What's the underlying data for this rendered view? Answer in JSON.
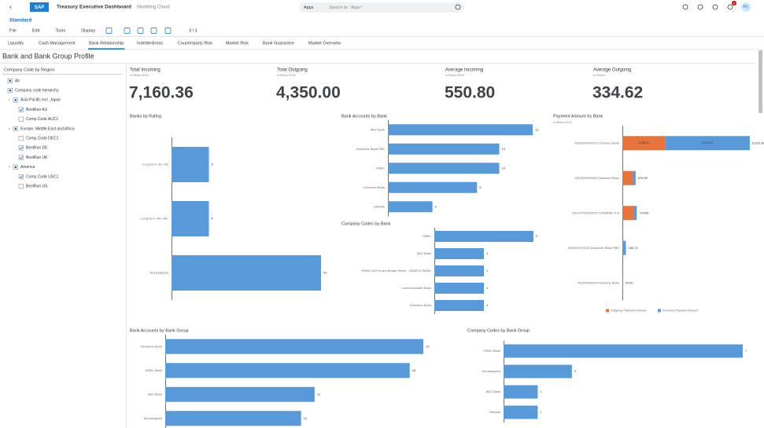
{
  "shell": {
    "app_title": "Treasury Executive Dashboard",
    "subtitle": "Modeling Cloud",
    "search_scope": "Apps",
    "search_placeholder": "Search in: \"Apps\"",
    "avatar": "PC",
    "notifications": "4"
  },
  "variant": "Standard",
  "toolbar": {
    "menus": [
      "File",
      "Edit",
      "Tools",
      "Display"
    ],
    "pager": "3 / 3"
  },
  "tabs": {
    "items": [
      "Liquidity",
      "Cash Management",
      "Bank Relationship",
      "Indebtedness",
      "Counterparty Risk",
      "Market Risk",
      "Bank Guarantee",
      "Market Overview"
    ],
    "active": 2
  },
  "page_title": "Bank and Bank Group Profile",
  "filter": {
    "title": "Company Code by Region",
    "items": [
      {
        "label": "All",
        "level": 0,
        "checked": false
      },
      {
        "label": "Company code hierarchy",
        "level": 0,
        "checked": false
      },
      {
        "label": "Asia Pacific incl. Japan",
        "level": 1,
        "checked": false
      },
      {
        "label": "BestRun AU",
        "level": 2,
        "checked": true
      },
      {
        "label": "Comp.Code AUC1",
        "level": 2,
        "checked": false
      },
      {
        "label": "Europe, Middle East and Africa",
        "level": 1,
        "checked": false
      },
      {
        "label": "Comp.Code DEC1",
        "level": 2,
        "checked": false
      },
      {
        "label": "BestRun DE",
        "level": 2,
        "checked": true
      },
      {
        "label": "BestRun UK",
        "level": 2,
        "checked": true
      },
      {
        "label": "America",
        "level": 1,
        "checked": false
      },
      {
        "label": "Comp.Code USC1",
        "level": 2,
        "checked": true
      },
      {
        "label": "BestRun US",
        "level": 2,
        "checked": false
      }
    ]
  },
  "kpis": [
    {
      "title": "Total Incoming",
      "unit": "in Million EUR",
      "value": "7,160.36"
    },
    {
      "title": "Total Outgoing",
      "unit": "in Million EUR",
      "value": "4,350.00"
    },
    {
      "title": "Average Incoming",
      "unit": "in Million EUR",
      "value": "550.80"
    },
    {
      "title": "Average Outgoing",
      "unit": "in Million",
      "value": "334.62"
    }
  ],
  "charts": [
    {
      "type": "bar",
      "title": "Banks by Rating",
      "categories": [
        "Long term: A1 / A2",
        "Long term: AA / AA-",
        "Not assigned"
      ],
      "values": [
        5,
        5,
        20
      ],
      "xlim": [
        0,
        20
      ],
      "color": "#5899da"
    },
    {
      "type": "bar",
      "title": "Bank Accounts by Bank",
      "categories": [
        "ANZ Bank",
        "Deutsche Bank PBK",
        "HSBC",
        "Commerz Bank",
        "Citibank"
      ],
      "values": [
        13,
        10,
        10,
        8,
        4
      ],
      "xlim": [
        0,
        13
      ],
      "color": "#5899da"
    },
    {
      "type": "bar",
      "title": "Company Codes by Bank",
      "categories": [
        "HSBC",
        "ANZ Bank",
        "HSBC Ltd Fin and Bridge Street - SAMPLE BANK",
        "Commonwealth Bank",
        "Commerz Bank"
      ],
      "values": [
        2,
        1,
        1,
        1,
        1
      ],
      "xlim": [
        0,
        2
      ],
      "color": "#5899da"
    },
    {
      "type": "stacked_bar",
      "title": "Payment Amount by Bank",
      "subtitle": "in Million EUR",
      "categories": [
        "DE/DE0070010 Commerz Bank",
        "DE/DE0500000 Deutsche Bank",
        "DE/CITIUS33XXX CITIBANK N.A",
        "DE/DE0070022 Deutsche Bank PBK",
        "DE/99999999 Deutsche Bank"
      ],
      "xlim": [
        0,
        6600
      ],
      "series": [
        {
          "name": "Outgoing Payment Amount",
          "color": "#e8743b",
          "values": [
            2198.11,
            540,
            580,
            0,
            0
          ],
          "value_labels": [
            "2,198.11",
            null,
            null,
            null,
            null
          ]
        },
        {
          "name": "Incoming Payment Amount",
          "color": "#5899da",
          "values": [
            4317.27,
            138.9,
            154.86,
            180.72,
            20
          ],
          "value_labels": [
            "4,317.27",
            null,
            null,
            null,
            null
          ]
        }
      ],
      "totals": [
        "6,515.38",
        "678.90",
        "734.86",
        "180.72",
        "20.00"
      ]
    },
    {
      "type": "bar",
      "title": "Bank Accounts by Bank Group",
      "categories": [
        "Deutsche Bank",
        "HSBC Bank",
        "ANZ Bank",
        "Not assigned"
      ],
      "values": [
        19,
        18,
        11,
        10
      ],
      "xlim": [
        0,
        19
      ],
      "color": "#5899da"
    },
    {
      "type": "bar",
      "title": "Company Codes by Bank Group",
      "categories": [
        "HSBC Bank",
        "Not assigned",
        "ANZ Bank",
        "Citibank"
      ],
      "values": [
        7,
        2,
        1,
        1
      ],
      "xlim": [
        0,
        7
      ],
      "color": "#5899da"
    }
  ]
}
